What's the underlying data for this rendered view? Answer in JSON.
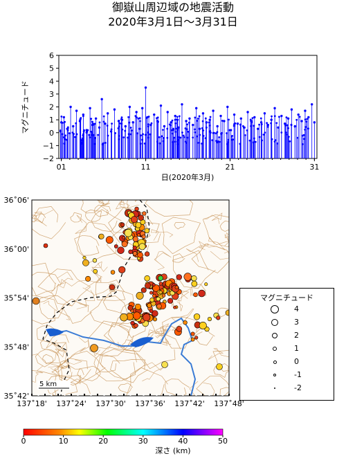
{
  "title": {
    "line1": "御嶽山周辺域の地震活動",
    "line2": "2020年3月1日～3月31日"
  },
  "mag_chart": {
    "ylabel": "マグニチュード",
    "xlabel": "日(2020年3月)",
    "yticks": [
      "6",
      "5",
      "4",
      "3",
      "2",
      "1",
      "0",
      "−1",
      "−2"
    ],
    "xticks": [
      "01",
      "11",
      "21",
      "31"
    ],
    "bar_color": "#0000ff"
  },
  "chart_data": {
    "type": "scatter",
    "title": "",
    "xlabel": "日(2020年3月)",
    "ylabel": "マグニチュード",
    "xlim": [
      0.7,
      31.3
    ],
    "ylim": [
      -2,
      6
    ],
    "series": [
      {
        "x": [
          1.0,
          1.3,
          1.7,
          2.1,
          2.4,
          2.8,
          3.2,
          3.6,
          4.0,
          4.4,
          4.7,
          5.1,
          5.5,
          5.8,
          6.2,
          6.5,
          6.9,
          7.3,
          7.8,
          8.2,
          8.6,
          9.1,
          9.5,
          9.9,
          10.3,
          10.6,
          11.0,
          11.2,
          11.6,
          12.0,
          12.4,
          12.8,
          13.2,
          13.6,
          14.0,
          14.5,
          14.9,
          15.3,
          15.8,
          16.2,
          16.6,
          17.0,
          17.4,
          17.8,
          18.2,
          18.6,
          19.0,
          19.5,
          19.9,
          20.3,
          20.7,
          21.1,
          21.5,
          21.9,
          22.3,
          22.7,
          23.1,
          23.5,
          23.9,
          24.3,
          24.7,
          25.1,
          25.5,
          25.9,
          26.3,
          26.7,
          27.1,
          27.5,
          27.9,
          28.3,
          28.7,
          29.1,
          29.5,
          29.9,
          30.3,
          30.7,
          31.0
        ],
        "y": [
          0.8,
          1.2,
          0.3,
          2.0,
          0.5,
          1.7,
          0.9,
          1.4,
          0.2,
          1.9,
          0.6,
          1.1,
          0.4,
          2.6,
          0.7,
          1.5,
          0.1,
          1.8,
          0.9,
          1.0,
          0.5,
          2.0,
          0.8,
          1.6,
          0.3,
          1.9,
          3.5,
          1.2,
          0.6,
          1.4,
          0.9,
          2.1,
          0.5,
          1.6,
          0.8,
          1.3,
          0.4,
          2.2,
          0.9,
          1.1,
          0.6,
          1.9,
          0.3,
          1.5,
          0.8,
          1.0,
          1.7,
          0.5,
          1.3,
          0.9,
          2.0,
          0.2,
          1.4,
          0.7,
          1.1,
          0.4,
          1.6,
          0.9,
          1.2,
          0.3,
          0.8,
          1.5,
          0.6,
          1.0,
          1.9,
          0.4,
          1.3,
          0.7,
          1.1,
          1.8,
          0.5,
          1.4,
          0.9,
          1.7,
          1.2,
          2.2,
          0.8
        ]
      }
    ]
  },
  "map": {
    "lat_labels": [
      "36˚06'",
      "36˚00'",
      "35˚54'",
      "35˚48'",
      "35˚42'"
    ],
    "lon_labels": [
      "137˚18'",
      "137˚24'",
      "137˚30'",
      "137˚36'",
      "137˚42'",
      "137˚48'"
    ],
    "scale_label": "5 km",
    "contour_color": "#c8955a",
    "river_color": "#3a7bd5",
    "lake_color": "#1a5fd0"
  },
  "legend": {
    "title": "マグニチュード",
    "rows": [
      {
        "label": "4",
        "size": 12
      },
      {
        "label": "3",
        "size": 10
      },
      {
        "label": "2",
        "size": 8
      },
      {
        "label": "1",
        "size": 6
      },
      {
        "label": "0",
        "size": 5
      },
      {
        "label": "-1",
        "size": 4
      },
      {
        "label": "-2",
        "size": 2
      }
    ]
  },
  "colorbar": {
    "label": "深さ (km)",
    "ticks": [
      "0",
      "10",
      "20",
      "30",
      "40",
      "50"
    ]
  }
}
